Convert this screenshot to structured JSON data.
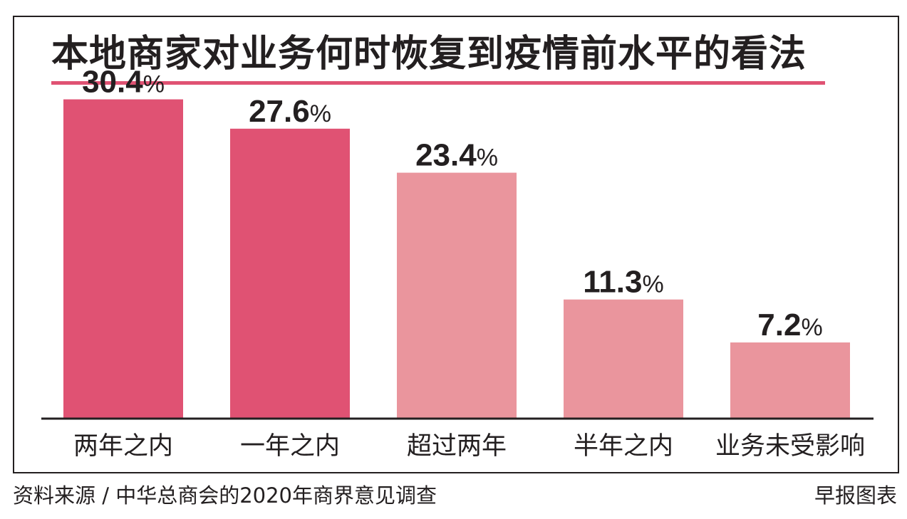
{
  "title": "本地商家对业务何时恢复到疫情前水平的看法",
  "source": "资料来源 / 中华总商会的2020年商界意见调查",
  "credit": "早报图表",
  "colors": {
    "accent": "#e05273",
    "bar_dark": "#e05273",
    "bar_light": "#ea959d",
    "text": "#231f20"
  },
  "chart_data": {
    "type": "bar",
    "title": "本地商家对业务何时恢复到疫情前水平的看法",
    "xlabel": "",
    "ylabel": "",
    "ylim": [
      0,
      32
    ],
    "grid": false,
    "unit": "%",
    "categories": [
      "两年之内",
      "一年之内",
      "超过两年",
      "半年之内",
      "业务未受影响"
    ],
    "values": [
      30.4,
      27.6,
      23.4,
      11.3,
      7.2
    ],
    "value_labels": [
      "30.4",
      "27.6",
      "23.4",
      "11.3",
      "7.2"
    ],
    "bar_tones": [
      "dark",
      "dark",
      "light",
      "light",
      "light"
    ]
  }
}
